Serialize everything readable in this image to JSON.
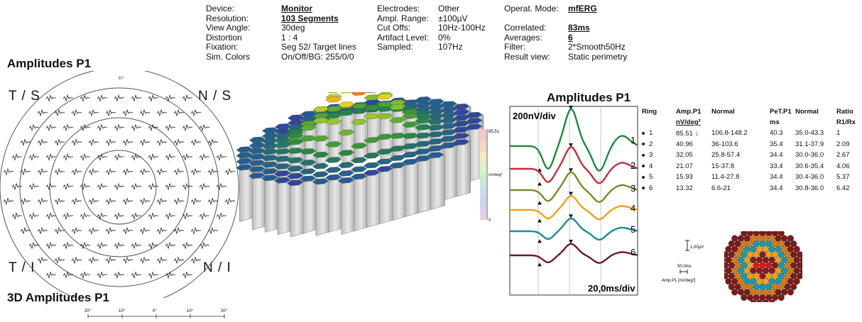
{
  "header": {
    "col1": [
      {
        "label": "Device:",
        "value": "Monitor",
        "emph": true
      },
      {
        "label": "Resolution:",
        "value": "103 Segments",
        "emph": true
      },
      {
        "label": "View Angle:",
        "value": "30deg",
        "emph": false
      },
      {
        "label": "Distortion",
        "value": "1 : 4",
        "emph": false
      },
      {
        "label": "Fixation:",
        "value": "Seg 52/ Target lines",
        "emph": false
      },
      {
        "label": "Sim. Colors",
        "value": "On/Off/BG: 255/0/0",
        "emph": false
      }
    ],
    "col2": [
      {
        "label": "Electrodes:",
        "value": "Other"
      },
      {
        "label": "Ampl. Range:",
        "value": "±100µV"
      },
      {
        "label": "Cut Offs:",
        "value": "10Hz-100Hz"
      },
      {
        "label": "Artifact Level:",
        "value": "0%"
      },
      {
        "label": "Sampled:",
        "value": "107Hz"
      }
    ],
    "col3": [
      {
        "label": "Operat. Mode:",
        "value": "mfERG",
        "emph": true,
        "row": 0
      },
      {
        "label": "Correlated:",
        "value": "83ms",
        "emph": true,
        "row": 2
      },
      {
        "label": "Averages:",
        "value": "6",
        "emph": true,
        "row": 3
      },
      {
        "label": "Filter:",
        "value": "2*Smooth50Hz",
        "emph": false,
        "row": 4
      },
      {
        "label": "Result view:",
        "value": "Static perimetry",
        "emph": false,
        "row": 5
      }
    ]
  },
  "left_panel": {
    "title": "Amplitudes P1",
    "quadrants": {
      "ts": "T / S",
      "ns": "N / S",
      "ti": "T / I",
      "ni": "N / I"
    },
    "top_label": "30°",
    "bottom_title": "3D Amplitudes P1",
    "scale_ticks": [
      "20°",
      "10°",
      "0°",
      "10°",
      "20°"
    ]
  },
  "surface": {
    "colorbar_max": "85,51",
    "colorbar_unit": "nV/deg²",
    "colorbar_min": "0",
    "colors": {
      "peak": "#cc1f1f",
      "mid": "#f0d020",
      "low": "#3aa030",
      "base": "#2050a0"
    }
  },
  "traces": {
    "title": "Amplitudes P1",
    "scale_y": "200nV/div",
    "scale_x": "20,0ms/div",
    "ring_labels": [
      "1",
      "2",
      "3",
      "4",
      "5",
      "6"
    ],
    "colors": [
      "#1e8a3c",
      "#cc2a3a",
      "#7a8a2a",
      "#f0a020",
      "#1a8c9a",
      "#6a1a2a"
    ]
  },
  "chart_data": {
    "type": "table",
    "columns": [
      "Ring",
      "Amp.P1",
      "Normal",
      "PeT.P1",
      "Normal",
      "Ratio"
    ],
    "units": [
      "",
      "nV/deg²",
      "",
      "ms",
      "",
      "R1/Rx"
    ],
    "rows": [
      {
        "ring": "1",
        "amp": "85.51",
        "normal_amp": "106.8-148.2",
        "pet": "40.3",
        "normal_pet": "35.0-43.3",
        "ratio": "1",
        "flag": true
      },
      {
        "ring": "2",
        "amp": "40.96",
        "normal_amp": "36-103.6",
        "pet": "35.4",
        "normal_pet": "31.1-37.9",
        "ratio": "2.09",
        "flag": false
      },
      {
        "ring": "3",
        "amp": "32.05",
        "normal_amp": "25.8-57.4",
        "pet": "34.4",
        "normal_pet": "30.0-36.0",
        "ratio": "2.67",
        "flag": false
      },
      {
        "ring": "4",
        "amp": "21.07",
        "normal_amp": "15-37.8",
        "pet": "33.4",
        "normal_pet": "30.6-35.4",
        "ratio": "4.06",
        "flag": false
      },
      {
        "ring": "5",
        "amp": "15.93",
        "normal_amp": "11.4-27.8",
        "pet": "34.4",
        "normal_pet": "30.4-36.0",
        "ratio": "5.37",
        "flag": false
      },
      {
        "ring": "6",
        "amp": "13.32",
        "normal_amp": "6.6-21",
        "pet": "34.4",
        "normal_pet": "30.8-36.0",
        "ratio": "6.42",
        "flag": false
      }
    ]
  },
  "legend": {
    "amp_scale": "1,00µV",
    "time_scale": "50,0ms",
    "legend_label": "Amp.P1 [nV/deg²]"
  }
}
